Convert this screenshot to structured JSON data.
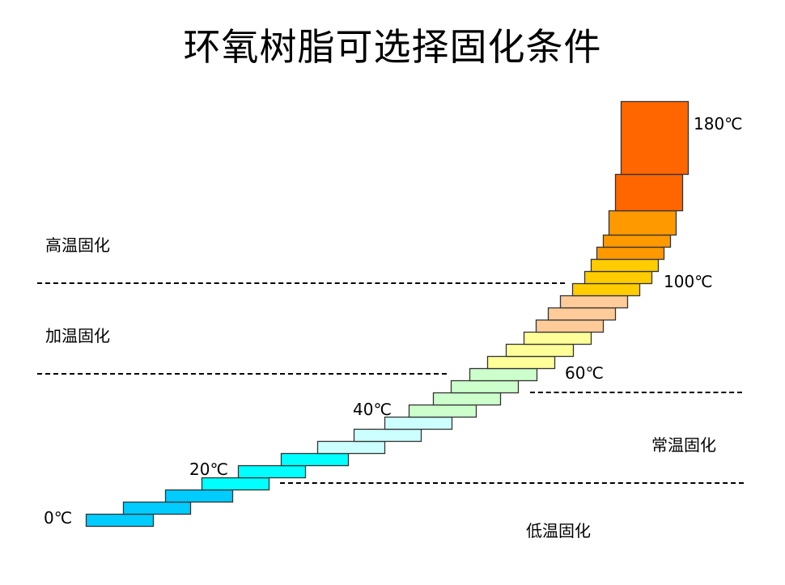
{
  "title": "环氧树脂可选择固化条件",
  "zones": [
    {
      "label": "高温固化"
    },
    {
      "label": "加温固化"
    },
    {
      "label": "常温固化"
    },
    {
      "label": "低温固化"
    }
  ],
  "temperature_labels": [
    {
      "label": "0℃",
      "value": 0
    },
    {
      "label": "20℃",
      "value": 20
    },
    {
      "label": "40℃",
      "value": 40
    },
    {
      "label": "60℃",
      "value": 60
    },
    {
      "label": "100℃",
      "value": 100
    },
    {
      "label": "180℃",
      "value": 180
    }
  ],
  "step_colors": {
    "deep_cyan": "#00CCFF",
    "cyan": "#00FFFF",
    "light_cyan": "#CCFFFF",
    "light_green": "#CCFFCC",
    "light_yellow": "#FFFF99",
    "peach": "#FFCC99",
    "gold": "#FFCC00",
    "orange": "#FF9900",
    "red_orange": "#FF6600"
  },
  "steps": [
    {
      "color": "deep_cyan"
    },
    {
      "color": "deep_cyan"
    },
    {
      "color": "deep_cyan"
    },
    {
      "color": "cyan"
    },
    {
      "color": "cyan"
    },
    {
      "color": "cyan"
    },
    {
      "color": "light_cyan"
    },
    {
      "color": "light_cyan"
    },
    {
      "color": "light_cyan"
    },
    {
      "color": "light_green"
    },
    {
      "color": "light_green"
    },
    {
      "color": "light_green"
    },
    {
      "color": "light_green"
    },
    {
      "color": "light_yellow"
    },
    {
      "color": "light_yellow"
    },
    {
      "color": "light_yellow"
    },
    {
      "color": "peach"
    },
    {
      "color": "peach"
    },
    {
      "color": "peach"
    },
    {
      "color": "gold"
    },
    {
      "color": "gold"
    },
    {
      "color": "gold"
    },
    {
      "color": "orange"
    },
    {
      "color": "orange"
    },
    {
      "color": "orange"
    },
    {
      "color": "red_orange"
    },
    {
      "color": "red_orange"
    }
  ]
}
